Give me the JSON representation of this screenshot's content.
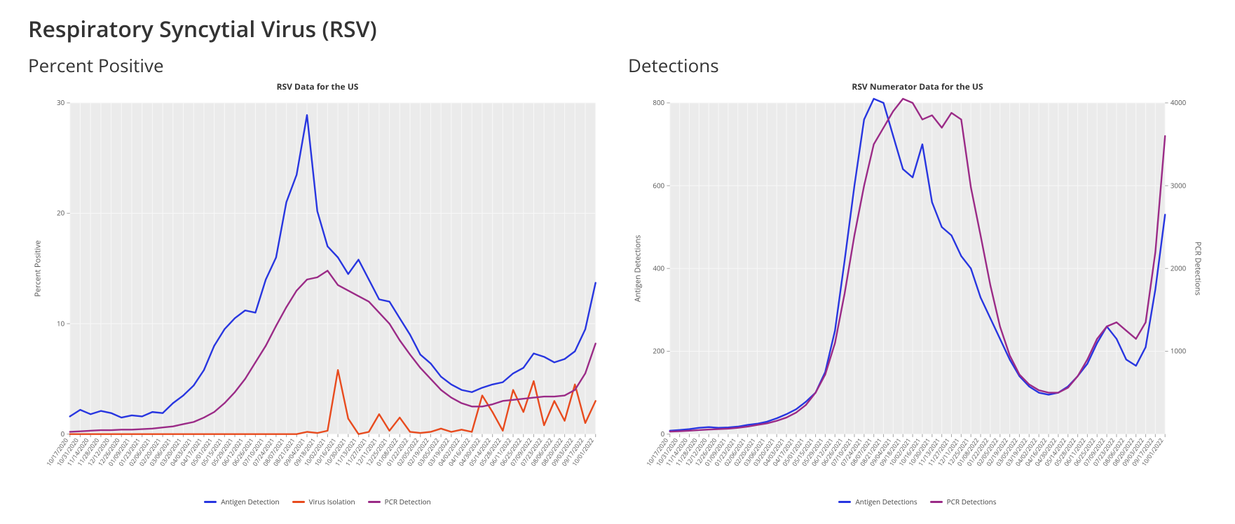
{
  "page": {
    "main_title": "Respiratory Syncytial Virus (RSV)",
    "background_color": "#ffffff"
  },
  "left_chart": {
    "section_title": "Percent Positive",
    "chart_title": "RSV Data for the US",
    "type": "line",
    "plot_background": "#ebebeb",
    "grid_color": "#f7f7f7",
    "tick_color": "#aaaaaa",
    "text_color": "#555555",
    "line_width": 2.2,
    "y": {
      "label": "Percent Positive",
      "min": 0,
      "max": 30,
      "ticks": [
        0,
        10,
        20,
        30
      ]
    },
    "x": {
      "labels": [
        "10/17/2020",
        "10/31/2020",
        "11/14/2020",
        "11/28/2020",
        "12/12/2020",
        "12/26/2020",
        "01/09/2021",
        "01/23/2021",
        "02/06/2021",
        "02/20/2021",
        "03/06/2021",
        "03/20/2021",
        "04/03/2021",
        "04/17/2021",
        "05/01/2021",
        "05/15/2021",
        "05/29/2021",
        "06/12/2021",
        "06/26/2021",
        "07/10/2021",
        "07/24/2021",
        "08/07/2021",
        "08/21/2021",
        "09/04/2021",
        "09/18/2021",
        "10/02/2021",
        "10/16/2021",
        "10/30/2021",
        "11/13/2021",
        "11/27/2021",
        "12/11/2021",
        "12/25/2021",
        "01/08/2022",
        "01/22/2022",
        "02/05/2022",
        "02/19/2022",
        "03/05/2022",
        "03/19/2022",
        "04/02/2022",
        "04/16/2022",
        "04/30/2022",
        "05/14/2022",
        "05/28/2022",
        "06/11/2022",
        "06/25/2022",
        "07/09/2022",
        "07/23/2022",
        "08/06/2022",
        "08/20/2022",
        "09/03/2022",
        "09/17/2022",
        "10/01/2022"
      ]
    },
    "series": [
      {
        "name": "Antigen Detection",
        "color": "#2836e0",
        "values": [
          1.6,
          2.2,
          1.8,
          2.1,
          1.9,
          1.5,
          1.7,
          1.6,
          2.0,
          1.9,
          2.8,
          3.5,
          4.4,
          5.8,
          8.0,
          9.5,
          10.5,
          11.2,
          11.0,
          14.0,
          16.0,
          21.0,
          23.5,
          28.9,
          20.2,
          17.0,
          16.0,
          14.5,
          15.8,
          14.0,
          12.2,
          12.0,
          10.5,
          9.0,
          7.2,
          6.4,
          5.2,
          4.5,
          4.0,
          3.8,
          4.2,
          4.5,
          4.7,
          5.5,
          6.0,
          7.3,
          7.0,
          6.5,
          6.8,
          7.5,
          9.5,
          13.7
        ]
      },
      {
        "name": "Virus Isolation",
        "color": "#e84b1e",
        "values": [
          0,
          0,
          0,
          0,
          0,
          0,
          0,
          0,
          0,
          0,
          0,
          0,
          0,
          0,
          0,
          0,
          0,
          0,
          0,
          0,
          0,
          0,
          0,
          0.2,
          0.1,
          0.3,
          5.8,
          1.4,
          0.0,
          0.2,
          1.8,
          0.3,
          1.5,
          0.2,
          0.1,
          0.2,
          0.5,
          0.2,
          0.4,
          0.2,
          3.5,
          2.0,
          0.3,
          4.0,
          2.0,
          4.8,
          0.8,
          3.0,
          1.2,
          4.5,
          1.0,
          3.0
        ]
      },
      {
        "name": "PCR Detection",
        "color": "#9b2b87",
        "values": [
          0.2,
          0.25,
          0.3,
          0.35,
          0.35,
          0.4,
          0.4,
          0.45,
          0.5,
          0.6,
          0.7,
          0.9,
          1.1,
          1.5,
          2.0,
          2.8,
          3.8,
          5.0,
          6.5,
          8.0,
          9.8,
          11.5,
          13.0,
          14.0,
          14.2,
          14.8,
          13.5,
          13.0,
          12.5,
          12.0,
          11.0,
          10.0,
          8.5,
          7.2,
          6.0,
          5.0,
          4.0,
          3.3,
          2.8,
          2.5,
          2.5,
          2.7,
          3.0,
          3.1,
          3.2,
          3.3,
          3.4,
          3.4,
          3.5,
          4.0,
          5.5,
          8.2
        ]
      }
    ],
    "legend_labels": [
      "Antigen Detection",
      "Virus Isolation",
      "PCR Detection"
    ]
  },
  "right_chart": {
    "section_title": "Detections",
    "chart_title": "RSV Numerator Data for the US",
    "type": "line-dual-y",
    "plot_background": "#ebebeb",
    "grid_color": "#f7f7f7",
    "tick_color": "#aaaaaa",
    "text_color": "#555555",
    "line_width": 2.2,
    "y_left": {
      "label": "Antigen Detections",
      "min": 0,
      "max": 800,
      "ticks": [
        0,
        200,
        400,
        600,
        800
      ]
    },
    "y_right": {
      "label": "PCR Detections",
      "min": 0,
      "max": 4000,
      "ticks": [
        1000,
        2000,
        3000,
        4000
      ]
    },
    "x": {
      "labels": [
        "10/17/2020",
        "10/31/2020",
        "11/14/2020",
        "11/28/2020",
        "12/12/2020",
        "12/26/2020",
        "01/09/2021",
        "01/23/2021",
        "02/06/2021",
        "02/20/2021",
        "03/06/2021",
        "03/20/2021",
        "04/03/2021",
        "04/17/2021",
        "05/01/2021",
        "05/15/2021",
        "05/29/2021",
        "06/12/2021",
        "06/26/2021",
        "07/10/2021",
        "07/24/2021",
        "08/07/2021",
        "08/21/2021",
        "09/04/2021",
        "09/18/2021",
        "10/02/2021",
        "10/16/2021",
        "10/30/2021",
        "11/13/2021",
        "11/27/2021",
        "12/11/2021",
        "12/25/2021",
        "01/08/2022",
        "01/22/2022",
        "02/05/2022",
        "02/19/2022",
        "03/05/2022",
        "03/19/2022",
        "04/02/2022",
        "04/16/2022",
        "04/30/2022",
        "05/14/2022",
        "05/28/2022",
        "06/11/2022",
        "06/25/2022",
        "07/09/2022",
        "07/23/2022",
        "08/06/2022",
        "08/20/2022",
        "09/03/2022",
        "09/17/2022",
        "10/01/2022"
      ]
    },
    "series": [
      {
        "name": "Antigen Detections",
        "axis": "left",
        "color": "#2836e0",
        "values": [
          8,
          10,
          12,
          15,
          17,
          15,
          16,
          18,
          22,
          25,
          30,
          38,
          48,
          60,
          78,
          100,
          150,
          250,
          420,
          600,
          760,
          810,
          800,
          720,
          640,
          620,
          700,
          560,
          500,
          480,
          430,
          400,
          330,
          280,
          230,
          180,
          140,
          115,
          100,
          95,
          100,
          115,
          140,
          170,
          220,
          260,
          230,
          180,
          165,
          210,
          350,
          530
        ]
      },
      {
        "name": "PCR Detections",
        "axis": "right",
        "color": "#9b2b87",
        "values": [
          30,
          35,
          40,
          48,
          55,
          60,
          65,
          75,
          90,
          110,
          130,
          160,
          200,
          260,
          350,
          500,
          720,
          1100,
          1700,
          2400,
          3000,
          3500,
          3700,
          3900,
          4050,
          4000,
          3800,
          3850,
          3700,
          3880,
          3800,
          2980,
          2400,
          1800,
          1300,
          950,
          720,
          600,
          530,
          500,
          500,
          560,
          700,
          900,
          1150,
          1300,
          1350,
          1250,
          1150,
          1350,
          2200,
          3600
        ]
      }
    ],
    "legend_labels": [
      "Antigen Detections",
      "PCR Detections"
    ]
  }
}
